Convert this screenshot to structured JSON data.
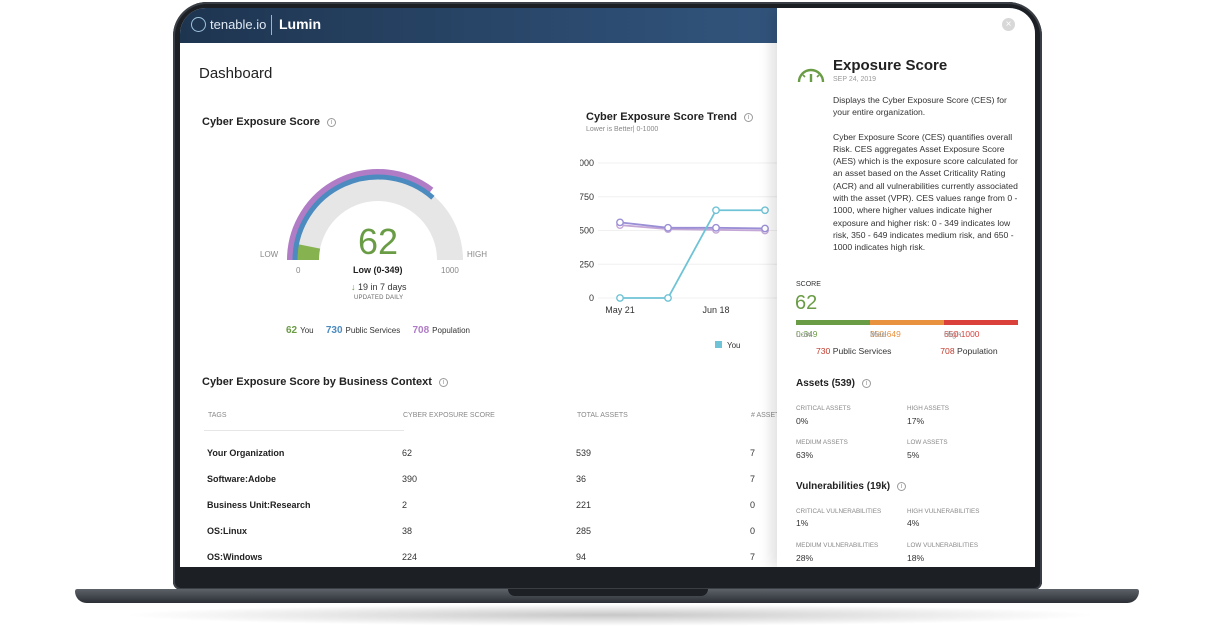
{
  "header": {
    "brand": "tenable.io",
    "product": "Lumin"
  },
  "page": {
    "title": "Dashboard"
  },
  "ces_card": {
    "title": "Cyber Exposure Score",
    "score": "62",
    "score_value": 62,
    "gauge_min": "0",
    "gauge_max": "1000",
    "low_label": "LOW",
    "high_label": "HIGH",
    "rating": "Low (0-349)",
    "delta": "19 in 7 days",
    "delta_arrow": "↓",
    "updated": "UPDATED DAILY",
    "public_services_score": 730,
    "population_score": 708,
    "legend": [
      {
        "value": "62",
        "label": "You",
        "color": "#6a9c45"
      },
      {
        "value": "730",
        "label": "Public Services",
        "color": "#4b8bbf"
      },
      {
        "value": "708",
        "label": "Population",
        "color": "#b07cc6"
      }
    ]
  },
  "trend_card": {
    "title": "Cyber Exposure Score Trend",
    "subtitle": "Lower is Better| 0-1000",
    "legend_you": "You"
  },
  "chart_data": {
    "type": "line",
    "title": "Cyber Exposure Score Trend",
    "ylim": [
      0,
      1000
    ],
    "yticks": [
      "1000",
      "750",
      "500",
      "250",
      "0"
    ],
    "xticks": [
      "May 21",
      "Jun 18"
    ],
    "series": [
      {
        "name": "You",
        "color": "#6fc3d6",
        "values": [
          0,
          0,
          650,
          650
        ]
      },
      {
        "color": "#9a8fd6",
        "values": [
          560,
          520,
          520,
          515
        ]
      },
      {
        "color": "#c4a7d6",
        "values": [
          540,
          510,
          505,
          500
        ]
      }
    ]
  },
  "context_card": {
    "title": "Cyber Exposure Score by Business Context",
    "columns": [
      "TAGS",
      "CYBER EXPOSURE SCORE",
      "TOTAL ASSETS",
      "# ASSETS"
    ],
    "rows": [
      [
        "Your Organization",
        "62",
        "539",
        "7"
      ],
      [
        "Software:Adobe",
        "390",
        "36",
        "7"
      ],
      [
        "Business Unit:Research",
        "2",
        "221",
        "0"
      ],
      [
        "OS:Linux",
        "38",
        "285",
        "0"
      ],
      [
        "OS:Windows",
        "224",
        "94",
        "7"
      ]
    ]
  },
  "panel": {
    "title": "Exposure Score",
    "date": "SEP 24, 2019",
    "desc1": "Displays the Cyber Exposure Score (CES) for your entire organization.",
    "desc2": "Cyber Exposure Score (CES) quantifies overall Risk. CES aggregates Asset Exposure Score (AES) which is the exposure score calculated for an asset based on the Asset Criticality Rating (ACR) and  all vulnerabilities currently associated with the asset (VPR). CES values range from 0 - 1000, where higher values indicate higher exposure and higher risk: 0 - 349 indicates low risk, 350 - 649 indicates medium risk, and 650 - 1000 indicates high risk.",
    "score_label": "SCORE",
    "score": "62",
    "ranges": [
      {
        "range": "0-349",
        "label": "Low",
        "color": "#6a9c45"
      },
      {
        "range": "350-649",
        "label": "Med",
        "color": "#e8913f"
      },
      {
        "range": "650-1000",
        "label": "High",
        "color": "#d9413a"
      }
    ],
    "public_services_value": "730",
    "public_services_label": "Public Services",
    "population_value": "708",
    "population_label": "Population",
    "assets_title": "Assets (539)",
    "assets": [
      {
        "label": "CRITICAL ASSETS",
        "value": "0%"
      },
      {
        "label": "HIGH ASSETS",
        "value": "17%"
      },
      {
        "label": "MEDIUM ASSETS",
        "value": "63%"
      },
      {
        "label": "LOW ASSETS",
        "value": "5%"
      }
    ],
    "vulns_title": "Vulnerabilities (19k)",
    "vulns": [
      {
        "label": "CRITICAL VULNERABILITIES",
        "value": "1%"
      },
      {
        "label": "HIGH VULNERABILITIES",
        "value": "4%"
      },
      {
        "label": "MEDIUM VULNERABILITIES",
        "value": "28%"
      },
      {
        "label": "LOW VULNERABILITIES",
        "value": "18%"
      }
    ]
  }
}
